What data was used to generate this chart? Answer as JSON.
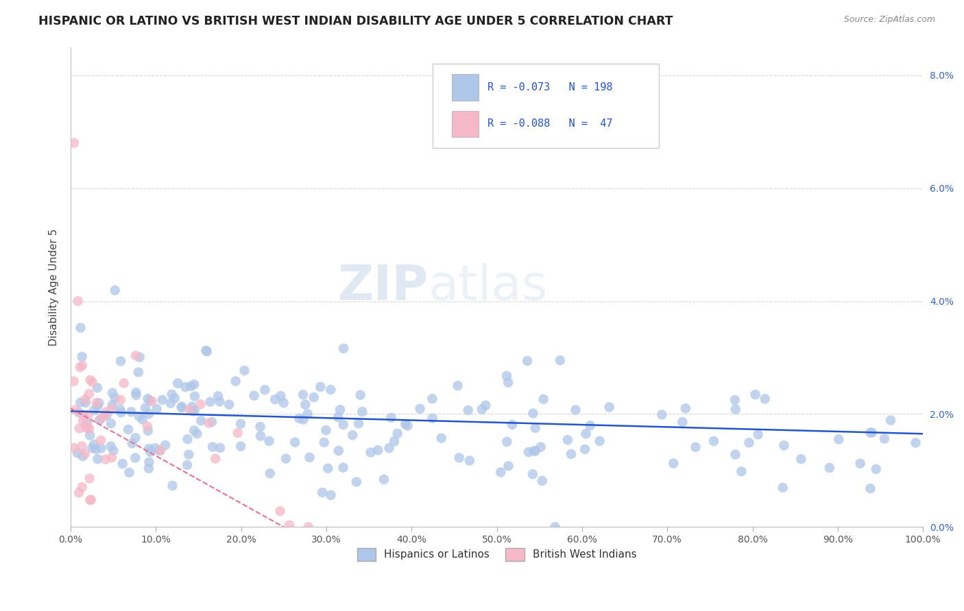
{
  "title": "HISPANIC OR LATINO VS BRITISH WEST INDIAN DISABILITY AGE UNDER 5 CORRELATION CHART",
  "source": "Source: ZipAtlas.com",
  "ylabel": "Disability Age Under 5",
  "xlim": [
    0,
    100
  ],
  "ylim": [
    0,
    8.5
  ],
  "xticks": [
    0,
    10,
    20,
    30,
    40,
    50,
    60,
    70,
    80,
    90,
    100
  ],
  "xticklabels": [
    "0.0%",
    "10.0%",
    "20.0%",
    "30.0%",
    "40.0%",
    "50.0%",
    "60.0%",
    "70.0%",
    "80.0%",
    "90.0%",
    "100.0%"
  ],
  "yticks": [
    0,
    2,
    4,
    6,
    8
  ],
  "yticklabels": [
    "0.0%",
    "2.0%",
    "4.0%",
    "6.0%",
    "8.0%"
  ],
  "blue_color": "#aec6e8",
  "pink_color": "#f4b8c8",
  "blue_line_color": "#2255cc",
  "pink_line_color": "#e87090",
  "legend_text_color": "#2255cc",
  "watermark_zip": "ZIP",
  "watermark_atlas": "atlas",
  "blue_line_x": [
    0,
    100
  ],
  "blue_line_y": [
    2.05,
    1.65
  ],
  "pink_line_x": [
    0,
    25
  ],
  "pink_line_y": [
    2.1,
    0.0
  ],
  "legend_r1": "R = -0.073",
  "legend_n1": "N = 198",
  "legend_r2": "R = -0.088",
  "legend_n2": "N =  47",
  "legend_label1": "Hispanics or Latinos",
  "legend_label2": "British West Indians"
}
